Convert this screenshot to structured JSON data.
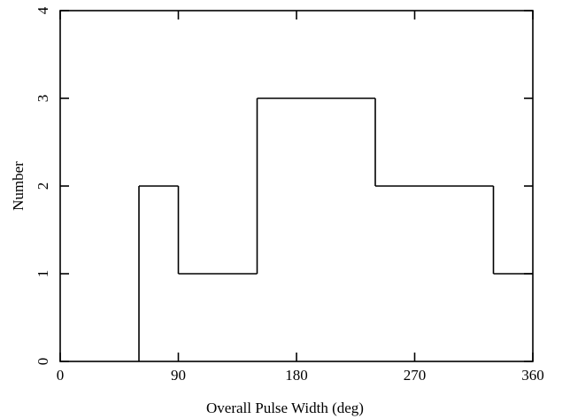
{
  "chart_data": {
    "type": "histogram",
    "xlabel": "Overall Pulse Width (deg)",
    "ylabel": "Number",
    "bins": [
      60,
      90,
      120,
      150,
      180,
      210,
      240,
      270,
      300,
      330,
      360
    ],
    "values": [
      2,
      1,
      1,
      3,
      3,
      3,
      2,
      2,
      2,
      1
    ],
    "color": "#000000",
    "xlim": [
      0,
      360
    ],
    "xticks": [
      0,
      90,
      180,
      270,
      360
    ],
    "ylim": [
      0,
      4
    ],
    "yticks": [
      0,
      1,
      2,
      3,
      4
    ],
    "grid": false
  }
}
